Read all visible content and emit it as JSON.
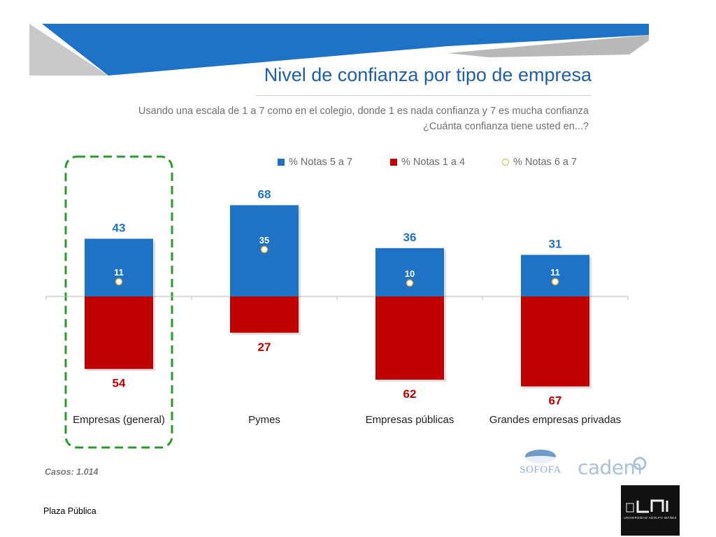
{
  "title": "Nivel de confianza por tipo de empresa",
  "subtitle": [
    "Usando una escala de 1 a 7 como en el colegio, donde 1 es nada confianza y 7 es mucha confianza",
    "¿Cuánta confianza tiene usted en...?"
  ],
  "legend": {
    "series_a": "% Notas 5 a 7",
    "series_b": "% Notas 1 a 4",
    "series_c": "% Notas 6 a 7"
  },
  "colors": {
    "blue": "#1f73c6",
    "red": "#bf0000",
    "dot_border": "#d8b336",
    "highlight": "#2a9a2a",
    "title": "#1f5fa6"
  },
  "chart_data": {
    "type": "bar",
    "categories": [
      "Empresas (general)",
      "Pymes",
      "Empresas públicas",
      "Grandes empresas privadas"
    ],
    "series": [
      {
        "name": "% Notas 5 a 7",
        "values": [
          43,
          68,
          36,
          31
        ],
        "direction": "up"
      },
      {
        "name": "% Notas 1 a 4",
        "values": [
          54,
          27,
          62,
          67
        ],
        "direction": "down"
      },
      {
        "name": "% Notas 6 a 7",
        "values": [
          11,
          35,
          10,
          11
        ],
        "marker": "circle"
      }
    ],
    "highlighted_category": "Empresas (general)",
    "grid": false
  },
  "casos": "Casos: 1.014",
  "footer": "Plaza Pública",
  "logos": {
    "sofofa": "SOFOFA",
    "cadem": "cadem",
    "uai": "UNIVERSIDAD ADOLFO IBÁÑEZ"
  }
}
